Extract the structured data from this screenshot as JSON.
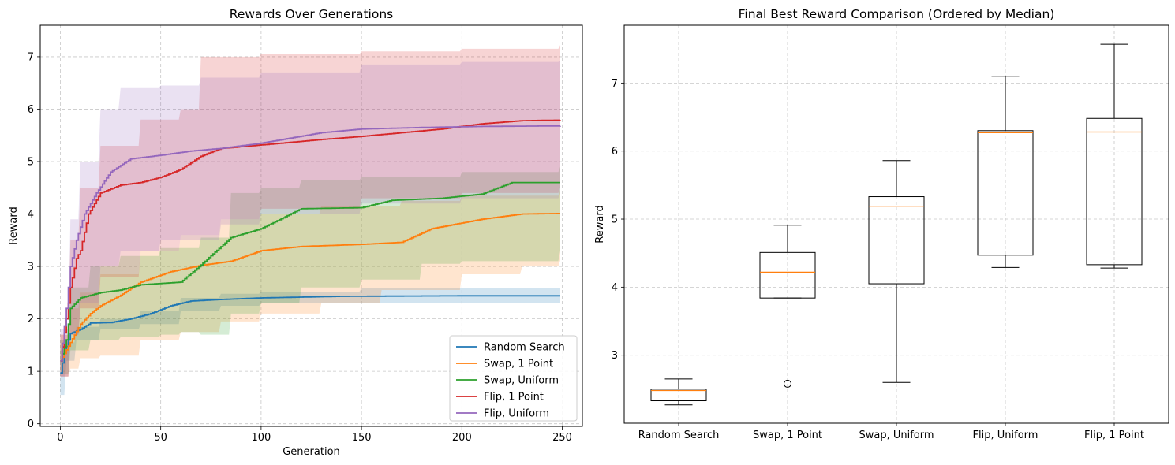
{
  "chart_data": [
    {
      "type": "line",
      "title": "Rewards Over Generations",
      "xlabel": "Generation",
      "ylabel": "Reward",
      "xlim": [
        -10,
        260
      ],
      "ylim": [
        -0.05,
        7.6
      ],
      "xticks": [
        0,
        50,
        100,
        150,
        200,
        250
      ],
      "yticks": [
        0,
        1,
        2,
        3,
        4,
        5,
        6,
        7
      ],
      "grid": true,
      "legend_position": "bottom-right",
      "series": [
        {
          "name": "Random Search",
          "color": "#1f77b4",
          "mean": [
            [
              0,
              0.97
            ],
            [
              2,
              1.35
            ],
            [
              5,
              1.72
            ],
            [
              10,
              1.8
            ],
            [
              15,
              1.92
            ],
            [
              25,
              1.93
            ],
            [
              35,
              2.0
            ],
            [
              45,
              2.1
            ],
            [
              55,
              2.25
            ],
            [
              65,
              2.34
            ],
            [
              80,
              2.37
            ],
            [
              100,
              2.4
            ],
            [
              140,
              2.43
            ],
            [
              200,
              2.44
            ],
            [
              249,
              2.44
            ]
          ],
          "lower": [
            [
              0,
              0.55
            ],
            [
              3,
              1.2
            ],
            [
              8,
              1.6
            ],
            [
              20,
              1.8
            ],
            [
              40,
              1.9
            ],
            [
              60,
              2.15
            ],
            [
              80,
              2.25
            ],
            [
              100,
              2.3
            ],
            [
              150,
              2.3
            ],
            [
              249,
              2.3
            ]
          ],
          "upper": [
            [
              0,
              1.4
            ],
            [
              3,
              1.55
            ],
            [
              8,
              1.85
            ],
            [
              20,
              2.0
            ],
            [
              40,
              2.15
            ],
            [
              60,
              2.4
            ],
            [
              80,
              2.48
            ],
            [
              100,
              2.52
            ],
            [
              150,
              2.58
            ],
            [
              249,
              2.58
            ]
          ]
        },
        {
          "name": "Swap, 1 Point",
          "color": "#ff7f0e",
          "mean": [
            [
              0,
              1.2
            ],
            [
              5,
              1.55
            ],
            [
              10,
              1.9
            ],
            [
              15,
              2.1
            ],
            [
              20,
              2.25
            ],
            [
              30,
              2.45
            ],
            [
              40,
              2.7
            ],
            [
              55,
              2.9
            ],
            [
              70,
              3.02
            ],
            [
              85,
              3.1
            ],
            [
              100,
              3.3
            ],
            [
              120,
              3.38
            ],
            [
              150,
              3.42
            ],
            [
              170,
              3.46
            ],
            [
              185,
              3.72
            ],
            [
              210,
              3.9
            ],
            [
              230,
              4.0
            ],
            [
              249,
              4.01
            ]
          ],
          "lower": [
            [
              0,
              0.9
            ],
            [
              5,
              1.05
            ],
            [
              10,
              1.25
            ],
            [
              20,
              1.3
            ],
            [
              40,
              1.6
            ],
            [
              60,
              1.75
            ],
            [
              80,
              1.95
            ],
            [
              100,
              2.1
            ],
            [
              130,
              2.3
            ],
            [
              160,
              2.55
            ],
            [
              200,
              2.85
            ],
            [
              230,
              3.0
            ],
            [
              249,
              3.12
            ]
          ],
          "upper": [
            [
              0,
              1.7
            ],
            [
              5,
              2.2
            ],
            [
              10,
              2.5
            ],
            [
              20,
              2.85
            ],
            [
              40,
              3.3
            ],
            [
              60,
              3.6
            ],
            [
              80,
              3.9
            ],
            [
              100,
              4.0
            ],
            [
              130,
              4.15
            ],
            [
              170,
              4.25
            ],
            [
              200,
              4.35
            ],
            [
              249,
              4.48
            ]
          ]
        },
        {
          "name": "Swap, Uniform",
          "color": "#2ca02c",
          "mean": [
            [
              0,
              1.2
            ],
            [
              3,
              1.6
            ],
            [
              5,
              2.2
            ],
            [
              10,
              2.4
            ],
            [
              20,
              2.5
            ],
            [
              30,
              2.55
            ],
            [
              40,
              2.65
            ],
            [
              60,
              2.7
            ],
            [
              70,
              3.03
            ],
            [
              85,
              3.55
            ],
            [
              100,
              3.72
            ],
            [
              120,
              4.1
            ],
            [
              150,
              4.12
            ],
            [
              165,
              4.26
            ],
            [
              190,
              4.3
            ],
            [
              210,
              4.38
            ],
            [
              225,
              4.6
            ],
            [
              249,
              4.6
            ]
          ],
          "lower": [
            [
              0,
              0.95
            ],
            [
              5,
              1.4
            ],
            [
              15,
              1.6
            ],
            [
              30,
              1.65
            ],
            [
              50,
              1.7
            ],
            [
              60,
              1.75
            ],
            [
              70,
              1.7
            ],
            [
              85,
              2.1
            ],
            [
              100,
              2.3
            ],
            [
              120,
              2.6
            ],
            [
              150,
              2.75
            ],
            [
              180,
              3.05
            ],
            [
              200,
              3.1
            ],
            [
              249,
              3.3
            ]
          ],
          "upper": [
            [
              0,
              1.6
            ],
            [
              5,
              2.6
            ],
            [
              15,
              3.0
            ],
            [
              30,
              3.2
            ],
            [
              50,
              3.35
            ],
            [
              70,
              3.55
            ],
            [
              85,
              4.4
            ],
            [
              100,
              4.5
            ],
            [
              120,
              4.65
            ],
            [
              150,
              4.7
            ],
            [
              200,
              4.8
            ],
            [
              249,
              4.9
            ]
          ]
        },
        {
          "name": "Flip, 1 Point",
          "color": "#d62728",
          "mean": [
            [
              0,
              1.2
            ],
            [
              3,
              2.0
            ],
            [
              5,
              2.6
            ],
            [
              8,
              3.15
            ],
            [
              10,
              3.3
            ],
            [
              14,
              4.0
            ],
            [
              20,
              4.4
            ],
            [
              30,
              4.55
            ],
            [
              40,
              4.6
            ],
            [
              50,
              4.7
            ],
            [
              60,
              4.85
            ],
            [
              70,
              5.1
            ],
            [
              80,
              5.25
            ],
            [
              95,
              5.3
            ],
            [
              110,
              5.35
            ],
            [
              130,
              5.42
            ],
            [
              150,
              5.48
            ],
            [
              170,
              5.55
            ],
            [
              190,
              5.62
            ],
            [
              210,
              5.72
            ],
            [
              230,
              5.78
            ],
            [
              249,
              5.79
            ]
          ],
          "lower": [
            [
              0,
              0.9
            ],
            [
              5,
              1.7
            ],
            [
              10,
              2.2
            ],
            [
              20,
              2.8
            ],
            [
              40,
              3.3
            ],
            [
              60,
              3.6
            ],
            [
              80,
              3.9
            ],
            [
              100,
              4.1
            ],
            [
              150,
              4.3
            ],
            [
              200,
              4.4
            ],
            [
              249,
              4.5
            ]
          ],
          "upper": [
            [
              0,
              1.7
            ],
            [
              5,
              3.5
            ],
            [
              10,
              4.5
            ],
            [
              20,
              5.3
            ],
            [
              40,
              5.8
            ],
            [
              60,
              6.0
            ],
            [
              70,
              7.0
            ],
            [
              100,
              7.05
            ],
            [
              150,
              7.1
            ],
            [
              200,
              7.15
            ],
            [
              249,
              7.22
            ]
          ]
        },
        {
          "name": "Flip, Uniform",
          "color": "#9467bd",
          "mean": [
            [
              0,
              1.2
            ],
            [
              3,
              2.2
            ],
            [
              5,
              3.0
            ],
            [
              8,
              3.5
            ],
            [
              12,
              4.0
            ],
            [
              18,
              4.4
            ],
            [
              25,
              4.8
            ],
            [
              35,
              5.05
            ],
            [
              50,
              5.12
            ],
            [
              65,
              5.2
            ],
            [
              80,
              5.25
            ],
            [
              100,
              5.35
            ],
            [
              130,
              5.55
            ],
            [
              150,
              5.62
            ],
            [
              180,
              5.65
            ],
            [
              210,
              5.67
            ],
            [
              249,
              5.68
            ]
          ],
          "lower": [
            [
              0,
              0.9
            ],
            [
              5,
              1.7
            ],
            [
              10,
              2.3
            ],
            [
              20,
              3.0
            ],
            [
              30,
              3.3
            ],
            [
              50,
              3.5
            ],
            [
              80,
              3.8
            ],
            [
              100,
              4.0
            ],
            [
              150,
              4.2
            ],
            [
              200,
              4.3
            ],
            [
              249,
              4.4
            ]
          ],
          "upper": [
            [
              0,
              1.8
            ],
            [
              5,
              3.9
            ],
            [
              10,
              5.0
            ],
            [
              20,
              6.0
            ],
            [
              30,
              6.4
            ],
            [
              50,
              6.45
            ],
            [
              70,
              6.6
            ],
            [
              100,
              6.7
            ],
            [
              150,
              6.85
            ],
            [
              200,
              6.9
            ],
            [
              249,
              6.92
            ]
          ]
        }
      ]
    },
    {
      "type": "box",
      "title": "Final Best Reward Comparison (Ordered by Median)",
      "xlabel": "",
      "ylabel": "Reward",
      "ylim": [
        2.0,
        7.85
      ],
      "yticks": [
        3,
        4,
        5,
        6,
        7
      ],
      "grid": true,
      "box_color": "#000000",
      "median_color": "#ff7f0e",
      "categories": [
        "Random Search",
        "Swap, 1 Point",
        "Swap, Uniform",
        "Flip, Uniform",
        "Flip, 1 Point"
      ],
      "boxes": [
        {
          "whisker_low": 2.27,
          "q1": 2.33,
          "median": 2.48,
          "q3": 2.5,
          "whisker_high": 2.65,
          "outliers": []
        },
        {
          "whisker_low": 3.84,
          "q1": 3.84,
          "median": 4.22,
          "q3": 4.51,
          "whisker_high": 4.91,
          "outliers": [
            2.58
          ]
        },
        {
          "whisker_low": 2.6,
          "q1": 4.05,
          "median": 5.19,
          "q3": 5.33,
          "whisker_high": 5.86,
          "outliers": []
        },
        {
          "whisker_low": 4.29,
          "q1": 4.47,
          "median": 6.27,
          "q3": 6.3,
          "whisker_high": 7.1,
          "outliers": []
        },
        {
          "whisker_low": 4.28,
          "q1": 4.33,
          "median": 6.28,
          "q3": 6.48,
          "whisker_high": 7.57,
          "outliers": []
        }
      ]
    }
  ]
}
